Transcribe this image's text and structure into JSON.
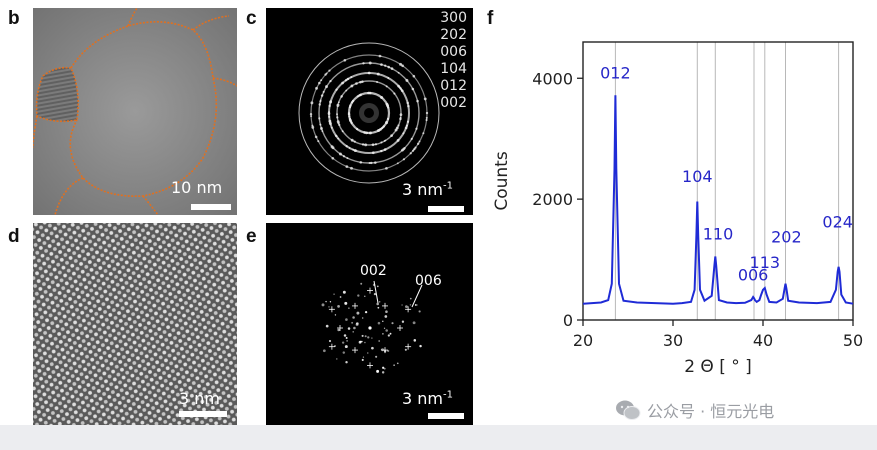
{
  "panels": {
    "b": {
      "label": "b",
      "scale": "10 nm"
    },
    "c": {
      "label": "c",
      "scale_num": "3 nm",
      "scale_sup": "-1",
      "rings": [
        "300",
        "202",
        "006",
        "104",
        "012",
        "002"
      ]
    },
    "d": {
      "label": "d",
      "scale": "3 nm"
    },
    "e": {
      "label": "e",
      "scale_num": "3 nm",
      "scale_sup": "-1",
      "annotations": [
        "002",
        "006"
      ]
    },
    "f": {
      "label": "f"
    }
  },
  "colors": {
    "trace": "#1f2bd6",
    "boundary": "#e07020",
    "peak_label": "#2626c8"
  },
  "chart_data": {
    "type": "line",
    "xlabel": "2 Θ [ ° ]",
    "ylabel": "Counts",
    "xlim": [
      20,
      50
    ],
    "ylim": [
      0,
      4600
    ],
    "xticks": [
      20,
      30,
      40,
      50
    ],
    "yticks": [
      0,
      2000,
      4000
    ],
    "grid": false,
    "reference_lines": [
      23.6,
      32.7,
      34.7,
      39.0,
      40.2,
      42.5,
      48.4
    ],
    "series": [
      {
        "x": [
          20,
          21,
          22,
          22.8,
          23.2,
          23.5,
          23.6,
          23.7,
          24.0,
          24.5,
          26,
          28,
          30,
          31,
          32,
          32.4,
          32.6,
          32.7,
          32.8,
          33.0,
          33.5,
          34.3,
          34.6,
          34.7,
          34.8,
          35.1,
          36,
          37,
          38,
          38.7,
          38.9,
          39.0,
          39.1,
          39.3,
          39.6,
          39.8,
          40.0,
          40.2,
          40.4,
          40.7,
          41.5,
          42.2,
          42.4,
          42.5,
          42.6,
          42.8,
          44,
          46,
          47.5,
          48.1,
          48.3,
          48.4,
          48.5,
          48.7,
          49.2,
          50
        ],
        "y": [
          270,
          280,
          290,
          330,
          600,
          2500,
          3720,
          2500,
          600,
          320,
          290,
          280,
          270,
          280,
          300,
          500,
          1400,
          1960,
          1400,
          500,
          320,
          400,
          900,
          1050,
          900,
          330,
          290,
          280,
          285,
          330,
          380,
          360,
          330,
          300,
          330,
          420,
          500,
          530,
          420,
          300,
          290,
          350,
          520,
          600,
          520,
          320,
          290,
          280,
          300,
          500,
          800,
          880,
          800,
          420,
          290,
          270
        ]
      }
    ],
    "peak_labels": [
      {
        "text": "012",
        "x": 23.6,
        "y": 4000
      },
      {
        "text": "104",
        "x": 32.7,
        "y": 2280
      },
      {
        "text": "110",
        "x": 35.0,
        "y": 1330
      },
      {
        "text": "006",
        "x": 38.9,
        "y": 650
      },
      {
        "text": "113",
        "x": 40.2,
        "y": 860
      },
      {
        "text": "202",
        "x": 42.6,
        "y": 1280
      },
      {
        "text": "024",
        "x": 48.3,
        "y": 1530
      }
    ]
  },
  "watermark": {
    "text": "公众号 · 恒元光电"
  }
}
